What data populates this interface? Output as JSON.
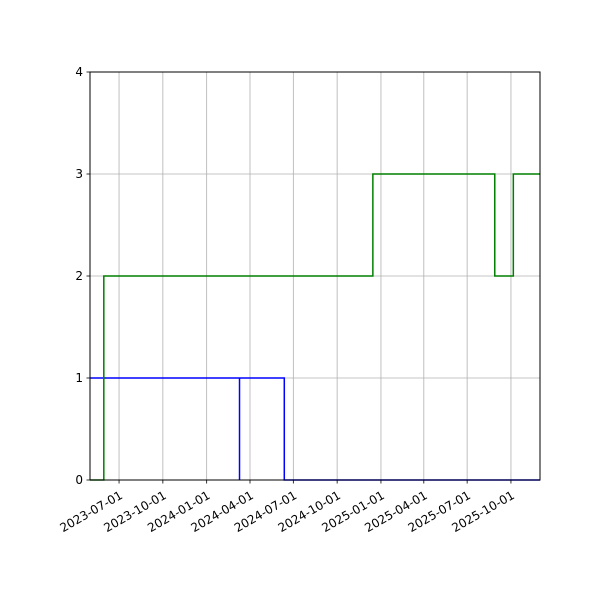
{
  "chart_data": {
    "type": "line",
    "title": "",
    "xlabel": "",
    "ylabel": "",
    "x_axis_type": "date",
    "xlim": [
      "2023-05-01",
      "2025-12-01"
    ],
    "ylim": [
      0,
      4
    ],
    "x_ticks": [
      "2023-07-01",
      "2023-10-01",
      "2024-01-01",
      "2024-04-01",
      "2024-07-01",
      "2024-10-01",
      "2025-01-01",
      "2025-04-01",
      "2025-07-01",
      "2025-10-01"
    ],
    "y_ticks": [
      "0",
      "1",
      "2",
      "3",
      "4"
    ],
    "grid": true,
    "legend": "none",
    "step": "post",
    "series": [
      {
        "color": "#0000ff",
        "points": [
          {
            "x": "2023-05-01",
            "y": 1
          },
          {
            "x": "2024-03-10",
            "y": 1
          },
          {
            "x": "2024-03-10",
            "y": 0
          },
          {
            "x": "2024-03-10",
            "y": 1
          },
          {
            "x": "2024-06-12",
            "y": 1
          },
          {
            "x": "2024-06-12",
            "y": 0
          },
          {
            "x": "2025-12-01",
            "y": 0
          }
        ]
      },
      {
        "color": "#008000",
        "points": [
          {
            "x": "2023-05-01",
            "y": 0
          },
          {
            "x": "2023-05-30",
            "y": 0
          },
          {
            "x": "2023-05-30",
            "y": 2
          },
          {
            "x": "2024-12-15",
            "y": 2
          },
          {
            "x": "2024-12-15",
            "y": 3
          },
          {
            "x": "2025-08-28",
            "y": 3
          },
          {
            "x": "2025-08-28",
            "y": 2
          },
          {
            "x": "2025-10-06",
            "y": 2
          },
          {
            "x": "2025-10-06",
            "y": 3
          },
          {
            "x": "2025-12-01",
            "y": 3
          }
        ]
      }
    ]
  }
}
